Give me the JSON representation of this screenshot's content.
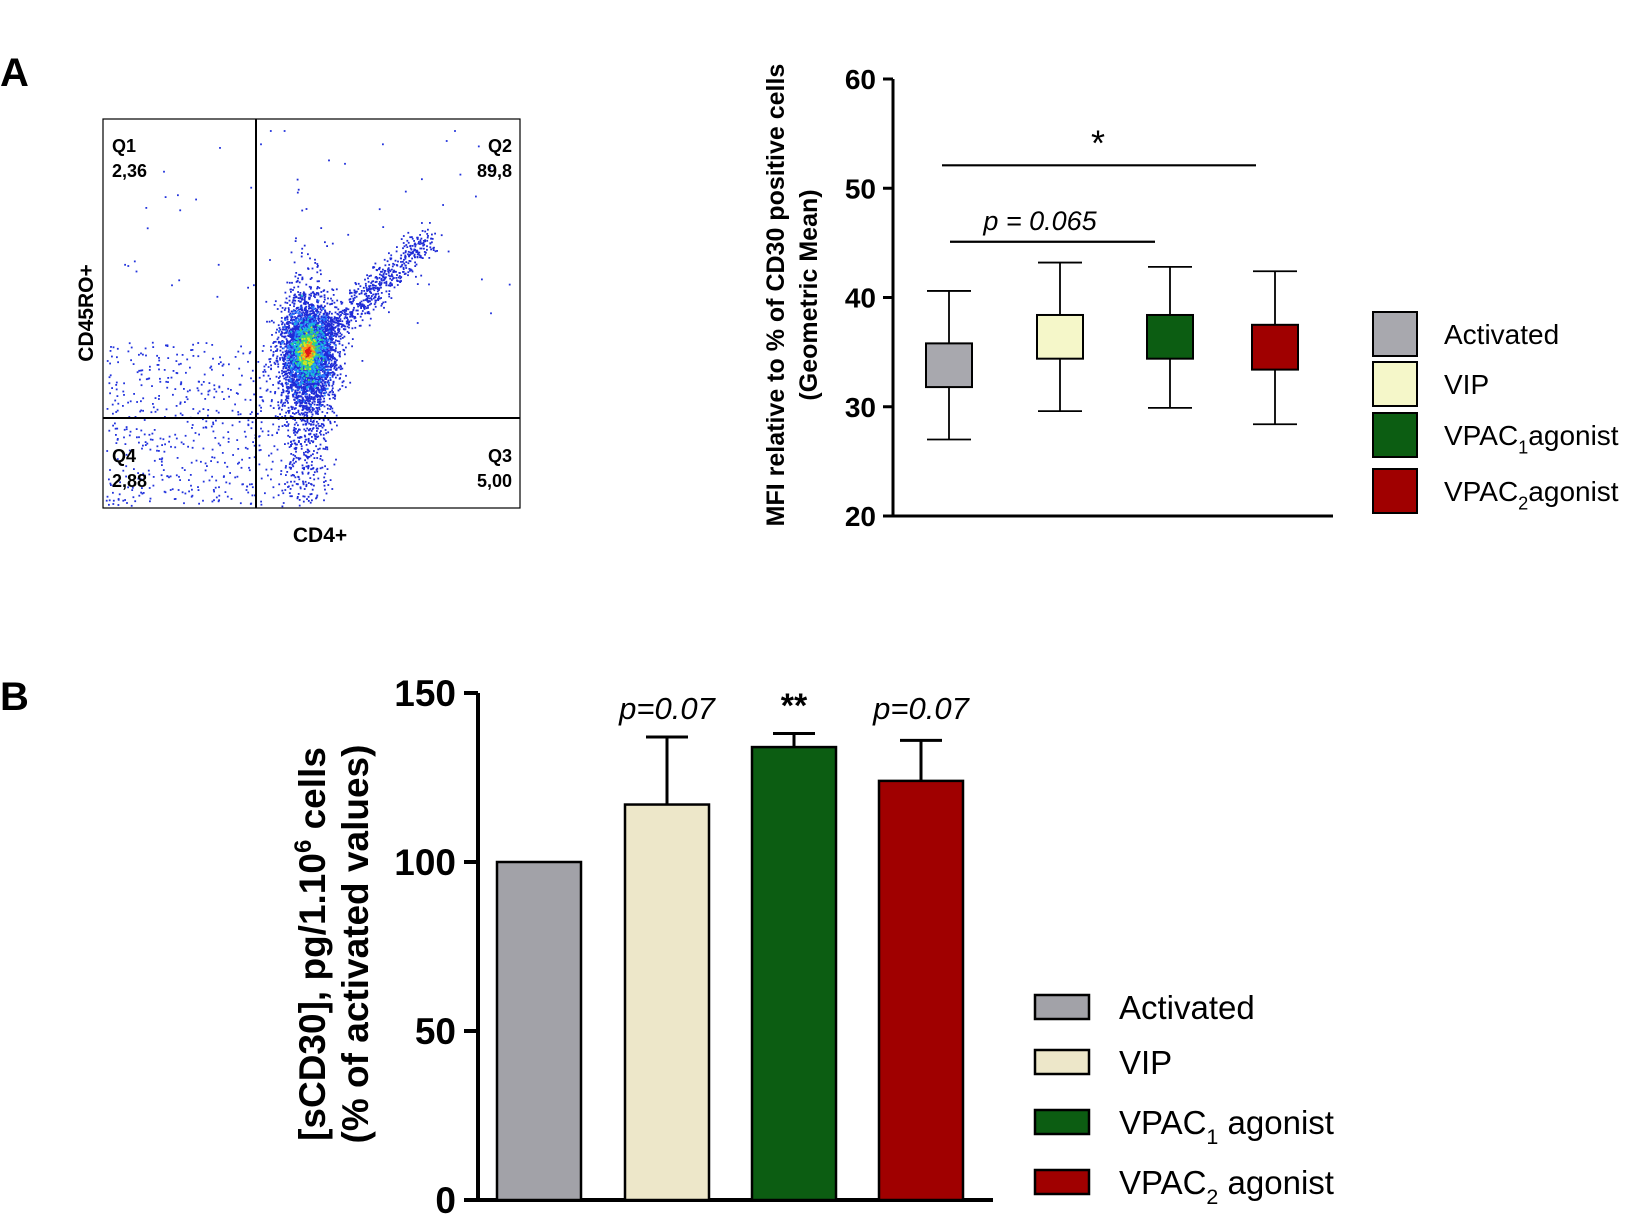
{
  "panels": {
    "a": "A",
    "b": "B"
  },
  "chart_data": [
    {
      "type": "scatter",
      "title": "",
      "xlabel": "CD4+",
      "ylabel": "CD45RO+",
      "gate_x": 0.375,
      "gate_y": 0.23,
      "quadrants": [
        {
          "name": "Q1",
          "value": "2,36",
          "pos": "top-left"
        },
        {
          "name": "Q2",
          "value": "89,8",
          "pos": "top-right"
        },
        {
          "name": "Q3",
          "value": "5,00",
          "pos": "bottom-right"
        },
        {
          "name": "Q4",
          "value": "2,88",
          "pos": "bottom-left"
        }
      ],
      "population": {
        "center": [
          0.46,
          0.42
        ],
        "spread": [
          0.03,
          0.05
        ]
      }
    },
    {
      "type": "box",
      "title": "",
      "xlabel": "",
      "ylabel": "MFI relative to % of CD30 positive cells",
      "ylabel2": "(Geometric Mean)",
      "ylim": [
        20,
        60
      ],
      "yticks": [
        20,
        30,
        40,
        50,
        60
      ],
      "series": [
        {
          "name": "Activated",
          "color": "#a8a8ae",
          "min": 27.0,
          "q1": 31.8,
          "q3": 35.8,
          "max": 40.6
        },
        {
          "name": "VIP",
          "color": "#f5f7c9",
          "min": 29.6,
          "q1": 34.4,
          "q3": 38.4,
          "max": 43.2
        },
        {
          "name": "VPAC",
          "sub": "1",
          "suffix": "agonist",
          "color": "#0c5d12",
          "min": 29.9,
          "q1": 34.4,
          "q3": 38.4,
          "max": 42.8
        },
        {
          "name": "VPAC",
          "sub": "2",
          "suffix": "agonist",
          "color": "#a00000",
          "min": 28.4,
          "q1": 33.4,
          "q3": 37.5,
          "max": 42.4
        }
      ],
      "annotations": [
        {
          "label": "*",
          "from": 0,
          "to": 3,
          "y": 52.1
        },
        {
          "label": "p = 0.065",
          "from": 0,
          "to": 2,
          "y": 45.1
        }
      ]
    },
    {
      "type": "bar",
      "title": "",
      "xlabel": "",
      "ylabel_prefix": "[sCD30], pg/1.10",
      "ylabel_sup": "6",
      "ylabel_suffix": " cells",
      "ylabel2": "(% of activated values)",
      "ylim": [
        0,
        150
      ],
      "yticks": [
        0,
        50,
        100,
        150
      ],
      "series": [
        {
          "name": "Activated",
          "color": "#a2a2a8",
          "value": 100,
          "error": 0,
          "annotation": ""
        },
        {
          "name": "VIP",
          "color": "#ede7c9",
          "value": 117,
          "error": 20,
          "annotation": "p=0.07"
        },
        {
          "name": "VPAC",
          "sub": "1",
          "suffix": " agonist",
          "color": "#0c5d12",
          "value": 134,
          "error": 4,
          "annotation": "**"
        },
        {
          "name": "VPAC",
          "sub": "2",
          "suffix": " agonist",
          "color": "#a00000",
          "value": 124,
          "error": 12,
          "annotation": "p=0.07"
        }
      ]
    }
  ]
}
